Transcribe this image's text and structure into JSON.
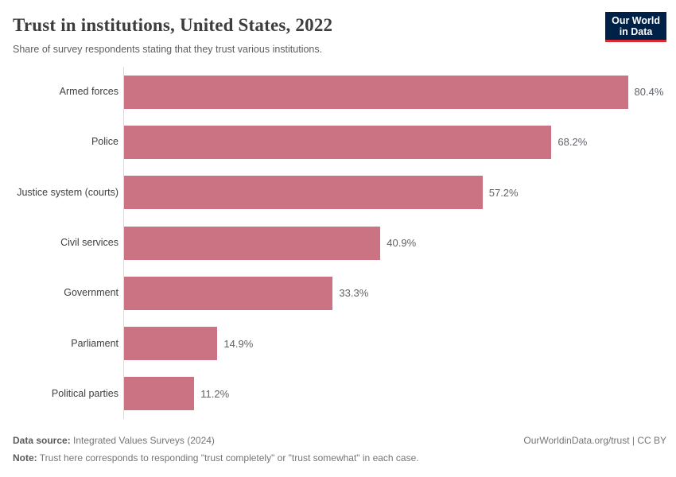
{
  "header": {
    "title": "Trust in institutions, United States, 2022",
    "subtitle": "Share of survey respondents stating that they trust various institutions.",
    "logo": {
      "line1": "Our World",
      "line2": "in Data"
    }
  },
  "chart_data": {
    "type": "bar",
    "orientation": "horizontal",
    "title": "Trust in institutions, United States, 2022",
    "categories": [
      "Armed forces",
      "Police",
      "Justice system (courts)",
      "Civil services",
      "Government",
      "Parliament",
      "Political parties"
    ],
    "values": [
      80.4,
      68.2,
      57.2,
      40.9,
      33.3,
      14.9,
      11.2
    ],
    "value_labels": [
      "80.4%",
      "68.2%",
      "57.2%",
      "40.9%",
      "33.3%",
      "14.9%",
      "11.2%"
    ],
    "unit": "%",
    "xlabel": "",
    "ylabel": "",
    "xlim": [
      0,
      86
    ],
    "grid": false,
    "legend": "none",
    "bar_color": "#cb7383"
  },
  "footer": {
    "data_source_label": "Data source:",
    "data_source_text": " Integrated Values Surveys (2024)",
    "note_label": "Note:",
    "note_text": " Trust here corresponds to responding \"trust completely\" or \"trust somewhat\" in each case.",
    "link": "OurWorldinData.org/trust | CC BY"
  },
  "colors": {
    "bar": "#cb7383",
    "logo_background": "#002147",
    "logo_accent": "#dc2830",
    "axis_line": "#d9d9d9",
    "title_text": "#3d3d3d",
    "subtitle_text": "#5b5e61",
    "category_text": "#3f4040",
    "value_text": "#5f6368",
    "footer_text": "#757575"
  }
}
